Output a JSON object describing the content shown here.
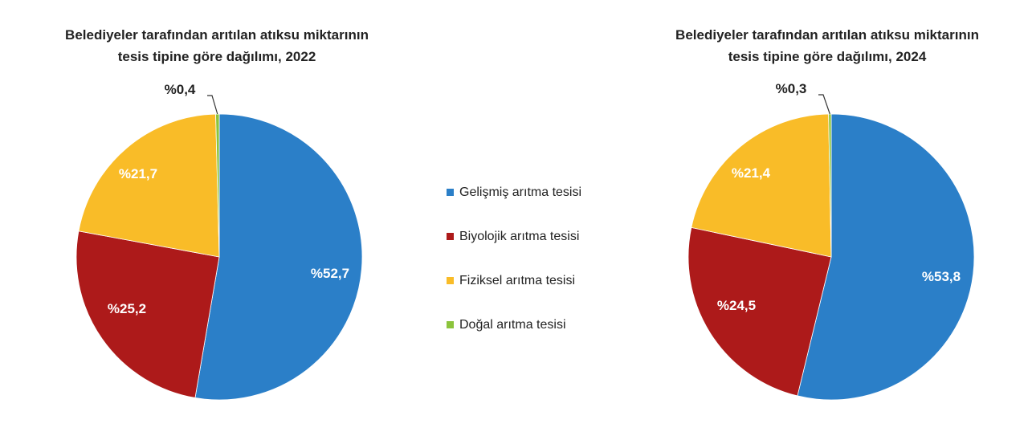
{
  "chart_data": [
    {
      "type": "pie",
      "title": "Belediyeler tarafından arıtılan atıksu miktarının\ntesis tipine göre dağılımı, 2022",
      "categories": [
        "Gelişmiş arıtma tesisi",
        "Biyolojik arıtma tesisi",
        "Fiziksel arıtma tesisi",
        "Doğal arıtma tesisi"
      ],
      "values": [
        52.7,
        25.2,
        21.7,
        0.4
      ],
      "labels": [
        "%52,7",
        "%25,2",
        "%21,7",
        "%0,4"
      ]
    },
    {
      "type": "pie",
      "title": "Belediyeler tarafından arıtılan atıksu miktarının\ntesis tipine göre dağılımı, 2024",
      "categories": [
        "Gelişmiş arıtma tesisi",
        "Biyolojik arıtma tesisi",
        "Fiziksel arıtma tesisi",
        "Doğal arıtma tesisi"
      ],
      "values": [
        53.8,
        24.5,
        21.4,
        0.3
      ],
      "labels": [
        "%53,8",
        "%24,5",
        "%21,4",
        "%0,3"
      ]
    }
  ],
  "legend": {
    "placement": "center",
    "items": [
      {
        "label": "Gelişmiş arıtma tesisi",
        "color": "#2b7fc8"
      },
      {
        "label": "Biyolojik arıtma tesisi",
        "color": "#ad1a1a"
      },
      {
        "label": "Fiziksel arıtma tesisi",
        "color": "#f9bc28"
      },
      {
        "label": "Doğal arıtma tesisi",
        "color": "#8cc43c"
      }
    ]
  },
  "colors": [
    "#2b7fc8",
    "#ad1a1a",
    "#f9bc28",
    "#8cc43c"
  ]
}
